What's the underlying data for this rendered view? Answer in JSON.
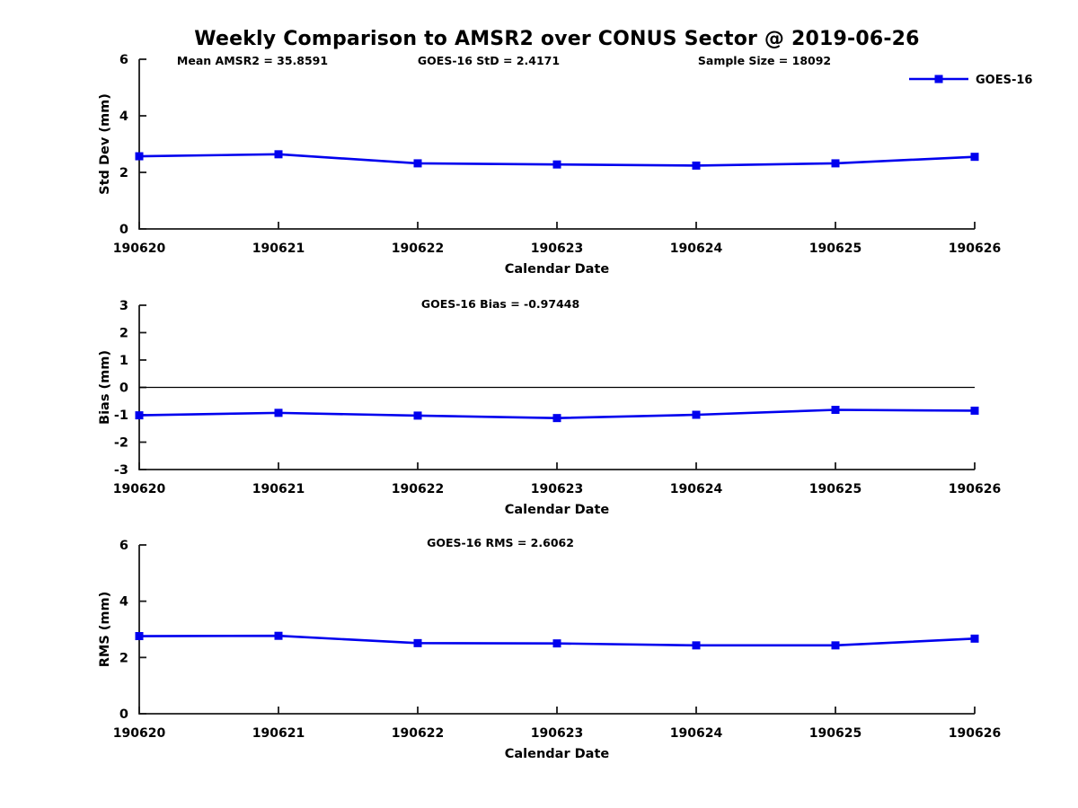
{
  "figure": {
    "title": "Weekly Comparison to AMSR2 over CONUS Sector @ 2019-06-26",
    "background": "#ffffff"
  },
  "colors": {
    "series_line": "#0000ee",
    "axis": "#1a1a1a",
    "text": "#000000",
    "zero_line": "#000000"
  },
  "chart_data": [
    {
      "type": "line",
      "name": "std-dev",
      "annotations": [
        "Mean AMSR2 = 35.8591",
        "GOES-16 StD = 2.4171",
        "Sample Size = 18092"
      ],
      "categories": [
        "190620",
        "190621",
        "190622",
        "190623",
        "190624",
        "190625",
        "190626"
      ],
      "series": [
        {
          "name": "GOES-16",
          "color": "#0000ee",
          "marker": "square",
          "values": [
            2.57,
            2.64,
            2.32,
            2.28,
            2.24,
            2.32,
            2.55
          ]
        }
      ],
      "xlabel": "Calendar Date",
      "ylabel": "Std Dev (mm)",
      "ylim": [
        0,
        6
      ],
      "yticks": [
        0,
        2,
        4,
        6
      ],
      "grid": false,
      "zero_line": false,
      "legend": {
        "show": true,
        "label": "GOES-16",
        "position": "top-right"
      }
    },
    {
      "type": "line",
      "name": "bias",
      "annotations": [
        "GOES-16 Bias  = -0.97448"
      ],
      "categories": [
        "190620",
        "190621",
        "190622",
        "190623",
        "190624",
        "190625",
        "190626"
      ],
      "series": [
        {
          "name": "GOES-16",
          "color": "#0000ee",
          "marker": "square",
          "values": [
            -1.02,
            -0.93,
            -1.03,
            -1.12,
            -1.0,
            -0.82,
            -0.85
          ]
        }
      ],
      "xlabel": "Calendar Date",
      "ylabel": "Bias (mm)",
      "ylim": [
        -3,
        3
      ],
      "yticks": [
        -3,
        -2,
        -1,
        0,
        1,
        2,
        3
      ],
      "grid": false,
      "zero_line": true,
      "legend": {
        "show": false
      }
    },
    {
      "type": "line",
      "name": "rms",
      "annotations": [
        "GOES-16 RMS = 2.6062"
      ],
      "categories": [
        "190620",
        "190621",
        "190622",
        "190623",
        "190624",
        "190625",
        "190626"
      ],
      "series": [
        {
          "name": "GOES-16",
          "color": "#0000ee",
          "marker": "square",
          "values": [
            2.76,
            2.77,
            2.51,
            2.5,
            2.43,
            2.43,
            2.67
          ]
        }
      ],
      "xlabel": "Calendar Date",
      "ylabel": "RMS (mm)",
      "ylim": [
        0,
        6
      ],
      "yticks": [
        0,
        2,
        4,
        6
      ],
      "grid": false,
      "zero_line": false,
      "legend": {
        "show": false
      }
    }
  ]
}
